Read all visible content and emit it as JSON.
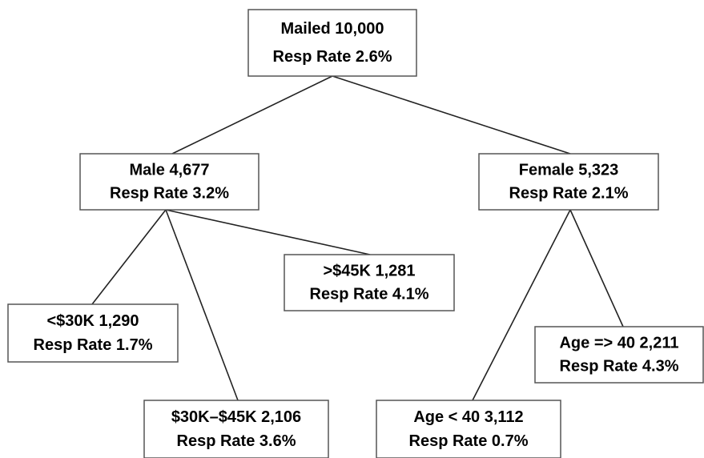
{
  "nodes": [
    {
      "lines": [
        "Mailed 10,000",
        "Resp Rate 2.6%"
      ]
    },
    {
      "lines": [
        "Male  4,677",
        "Resp Rate 3.2%"
      ]
    },
    {
      "lines": [
        "Female  5,323",
        "Resp Rate 2.1%"
      ]
    },
    {
      "lines": [
        ">$45K  1,281",
        "Resp Rate 4.1%"
      ]
    },
    {
      "lines": [
        "<$30K  1,290",
        "Resp Rate 1.7%"
      ]
    },
    {
      "lines": [
        "$30K–$45K 2,106",
        "Resp Rate 3.6%"
      ]
    },
    {
      "lines": [
        "Age < 40  3,112",
        "Resp Rate 0.7%"
      ]
    },
    {
      "lines": [
        "Age => 40  2,211",
        "Resp Rate 4.3%"
      ]
    }
  ]
}
